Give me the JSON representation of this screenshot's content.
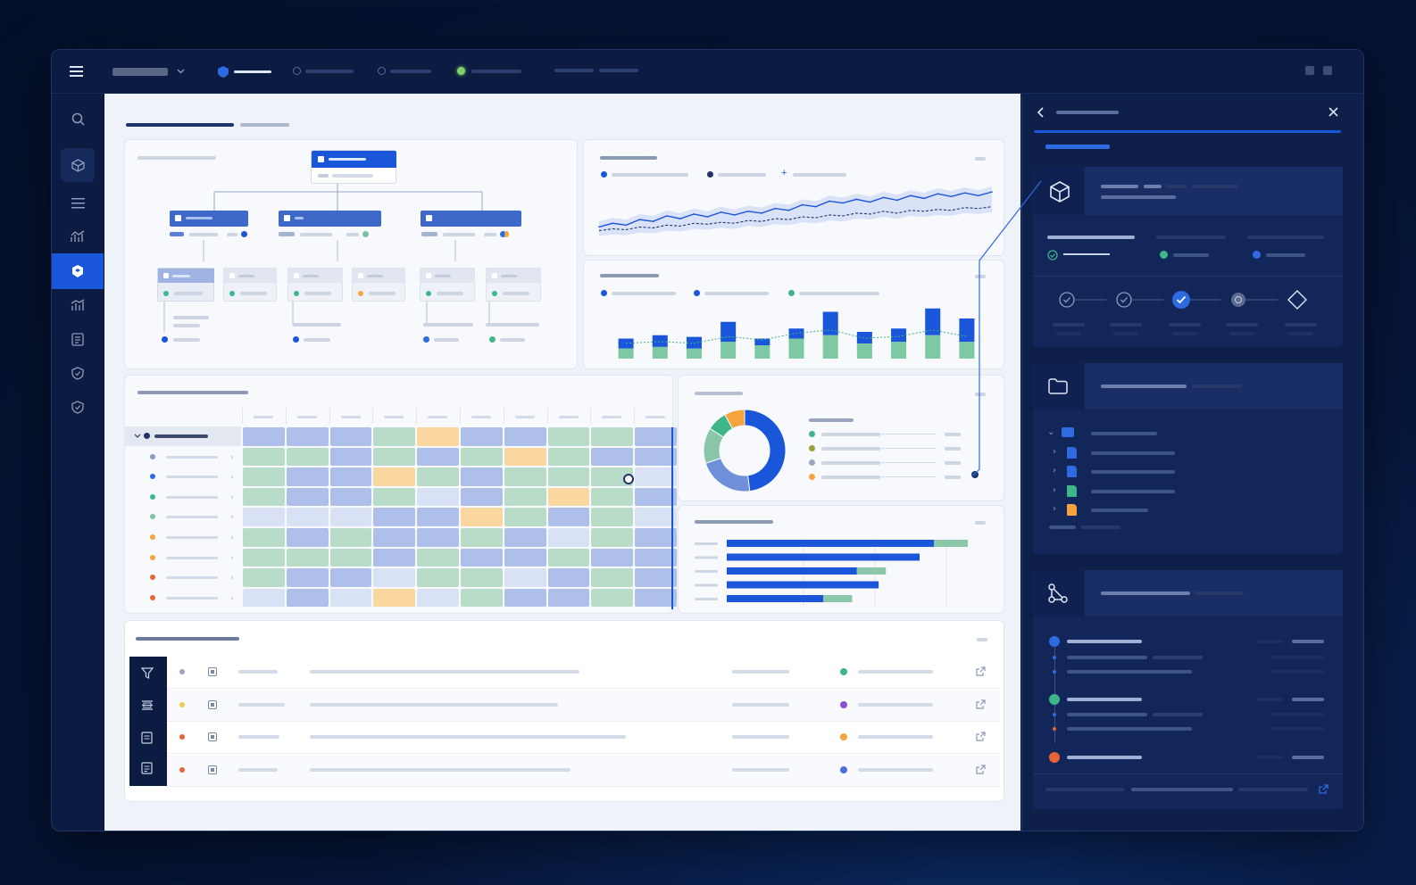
{
  "colors": {
    "accent": "#1a56d9",
    "green": "#3fb58a",
    "orange": "#f4a43a",
    "red": "#e8623a",
    "purple": "#8a4fd6",
    "light_blue": "#6f8fd8",
    "panel_bg": "#0e1f49"
  },
  "topbar": {
    "menu_icon": "hamburger-icon",
    "workspace_selector": "",
    "tabs": [
      {
        "name": "tab-active",
        "active": true
      },
      {
        "name": "tab-2",
        "active": false
      },
      {
        "name": "tab-3",
        "active": false
      },
      {
        "name": "tab-4-live",
        "active": false
      }
    ]
  },
  "sidebar": {
    "items": [
      {
        "icon": "search-icon"
      },
      {
        "icon": "cube-icon"
      },
      {
        "icon": "list-icon"
      },
      {
        "icon": "analytics-icon"
      },
      {
        "icon": "blocks-icon",
        "active": true
      },
      {
        "icon": "bar-chart-icon"
      },
      {
        "icon": "document-icon"
      },
      {
        "icon": "shield-icon"
      },
      {
        "icon": "shield-check-icon"
      }
    ]
  },
  "heatmap": {
    "rows": 9,
    "cols": 10,
    "levels": [
      [
        "b",
        "b",
        "b",
        "g",
        "o",
        "b",
        "b",
        "g",
        "g",
        "b"
      ],
      [
        "g",
        "g",
        "b",
        "g",
        "b",
        "g",
        "o",
        "g",
        "b",
        "b"
      ],
      [
        "g",
        "b",
        "b",
        "o",
        "g",
        "b",
        "g",
        "g",
        "g",
        "l"
      ],
      [
        "g",
        "b",
        "b",
        "g",
        "l",
        "b",
        "g",
        "o",
        "g",
        "b"
      ],
      [
        "l",
        "l",
        "l",
        "b",
        "b",
        "o",
        "g",
        "b",
        "g",
        "l"
      ],
      [
        "g",
        "b",
        "g",
        "b",
        "b",
        "g",
        "b",
        "l",
        "g",
        "b"
      ],
      [
        "g",
        "g",
        "g",
        "b",
        "g",
        "b",
        "b",
        "g",
        "b",
        "b"
      ],
      [
        "g",
        "b",
        "b",
        "l",
        "g",
        "g",
        "l",
        "b",
        "g",
        "b"
      ],
      [
        "l",
        "b",
        "l",
        "o",
        "l",
        "g",
        "b",
        "b",
        "g",
        "b"
      ]
    ],
    "row_dot_colors": [
      "#8a9cc2",
      "#2f6be0",
      "#3fb58a",
      "#7ec1a0",
      "#f4a43a",
      "#f4a43a",
      "#e8623a",
      "#e8623a"
    ]
  },
  "chart_data": [
    {
      "type": "line",
      "title": "",
      "x": [
        1,
        2,
        3,
        4,
        5,
        6,
        7,
        8,
        9,
        10,
        11,
        12,
        13,
        14,
        15,
        16,
        17,
        18,
        19,
        20,
        21,
        22,
        23,
        24,
        25,
        26,
        27,
        28,
        29,
        30
      ],
      "series": [
        {
          "values": [
            18,
            22,
            20,
            26,
            24,
            30,
            27,
            32,
            29,
            34,
            31,
            35,
            33,
            38,
            36,
            42,
            40,
            46,
            44,
            48,
            45,
            50,
            47,
            52,
            49,
            54,
            51,
            55,
            52,
            56
          ]
        },
        {
          "values": [
            14,
            16,
            15,
            18,
            17,
            20,
            19,
            22,
            21,
            23,
            22,
            25,
            24,
            27,
            26,
            29,
            28,
            31,
            30,
            33,
            32,
            35,
            33,
            36,
            35,
            37,
            36,
            39,
            38,
            40
          ]
        }
      ]
    },
    {
      "type": "bar",
      "title": "",
      "categories": [
        "1",
        "2",
        "3",
        "4",
        "5",
        "6",
        "7",
        "8",
        "9",
        "10",
        "11"
      ],
      "series": [
        {
          "values": [
            12,
            14,
            13,
            22,
            12,
            18,
            28,
            16,
            18,
            30,
            24
          ]
        },
        {
          "values": [
            6,
            7,
            6,
            10,
            8,
            12,
            14,
            9,
            10,
            14,
            10
          ]
        }
      ]
    },
    {
      "type": "pie",
      "title": "",
      "values": [
        48,
        22,
        14,
        8,
        8
      ],
      "colors": [
        "#1a56d9",
        "#6f8fd8",
        "#8cc6a8",
        "#3fb58a",
        "#f4a43a"
      ]
    },
    {
      "type": "bar",
      "orientation": "horizontal",
      "title": "",
      "categories": [
        "1",
        "2",
        "3",
        "4",
        "5"
      ],
      "series": [
        {
          "values": [
            86,
            80,
            54,
            63,
            40
          ]
        },
        {
          "values": [
            14,
            0,
            12,
            0,
            12
          ]
        }
      ]
    }
  ],
  "records": [
    {
      "dot": "#9aa6bd",
      "status": "#3fb58a"
    },
    {
      "dot": "#f4c55a",
      "status": "#8a4fd6"
    },
    {
      "dot": "#e8623a",
      "status": "#f4a43a"
    },
    {
      "dot": "#e8623a",
      "status": "#4a6fe0"
    }
  ],
  "right_panel": {
    "back_icon": "chevron-left-icon",
    "close_icon": "close-icon",
    "stepper_steps": [
      "done",
      "done",
      "current",
      "pending",
      "milestone"
    ],
    "file_tree_icons": [
      "folder-icon",
      "file-icon",
      "file-icon",
      "file-icon",
      "file-icon"
    ],
    "file_colors": [
      "#2f6be0",
      "#2f6be0",
      "#2f6be0",
      "#3fb58a",
      "#f4a43a"
    ],
    "timeline_colors": [
      "#2f6be0",
      "#3fb58a",
      "#e8623a"
    ]
  }
}
